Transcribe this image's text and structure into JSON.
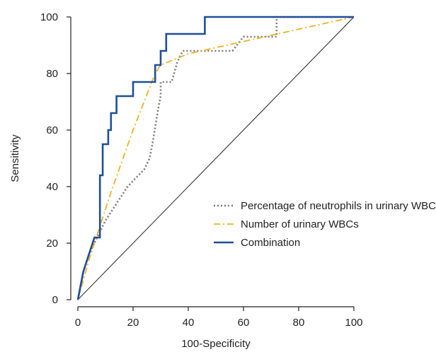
{
  "chart_data": {
    "type": "line",
    "xlabel": "100-Specificity",
    "ylabel": "Sensitivity",
    "xlim": [
      0,
      100
    ],
    "ylim": [
      0,
      100
    ],
    "x_ticks": [
      0,
      20,
      40,
      60,
      80,
      100
    ],
    "y_ticks": [
      0,
      20,
      40,
      60,
      80,
      100
    ],
    "grid": false,
    "legend_position": "bottom-right",
    "reference_line": {
      "x": [
        0,
        100
      ],
      "y": [
        0,
        100
      ],
      "color": "#222222"
    },
    "series": [
      {
        "name": "Percentage of neutrophils in urinary WBCs",
        "style": "dotted",
        "color": "#7a7a7a",
        "x": [
          0,
          2,
          4,
          6,
          8,
          10,
          12,
          14,
          16,
          18,
          20,
          22,
          24,
          26,
          27,
          28,
          29,
          30,
          30,
          32,
          34,
          36,
          38,
          56,
          60,
          72,
          72,
          100
        ],
        "y": [
          0,
          10,
          16,
          20,
          24,
          28,
          31,
          34,
          37,
          40,
          42,
          44,
          46,
          50,
          55,
          61,
          67,
          72,
          77,
          77,
          77,
          84,
          88,
          88,
          93,
          93,
          100,
          100
        ]
      },
      {
        "name": "Number of urinary WBCs",
        "style": "dashdot",
        "color": "#f2b01e",
        "x": [
          0,
          4,
          8,
          12,
          16,
          20,
          24,
          28,
          30,
          40,
          100
        ],
        "y": [
          0,
          14,
          26,
          38,
          49,
          60,
          70,
          80,
          83,
          87,
          100
        ]
      },
      {
        "name": "Combination",
        "style": "solid",
        "color": "#1f4e9c",
        "x": [
          0,
          2,
          4,
          6,
          8,
          8,
          9,
          9,
          11,
          11,
          12,
          12,
          14,
          14,
          20,
          20,
          28,
          28,
          30,
          30,
          32,
          32,
          46,
          46,
          100
        ],
        "y": [
          0,
          10,
          16,
          22,
          22,
          44,
          44,
          55,
          55,
          60,
          60,
          66,
          66,
          72,
          72,
          77,
          77,
          83,
          83,
          88,
          88,
          94,
          94,
          100,
          100
        ]
      }
    ]
  }
}
